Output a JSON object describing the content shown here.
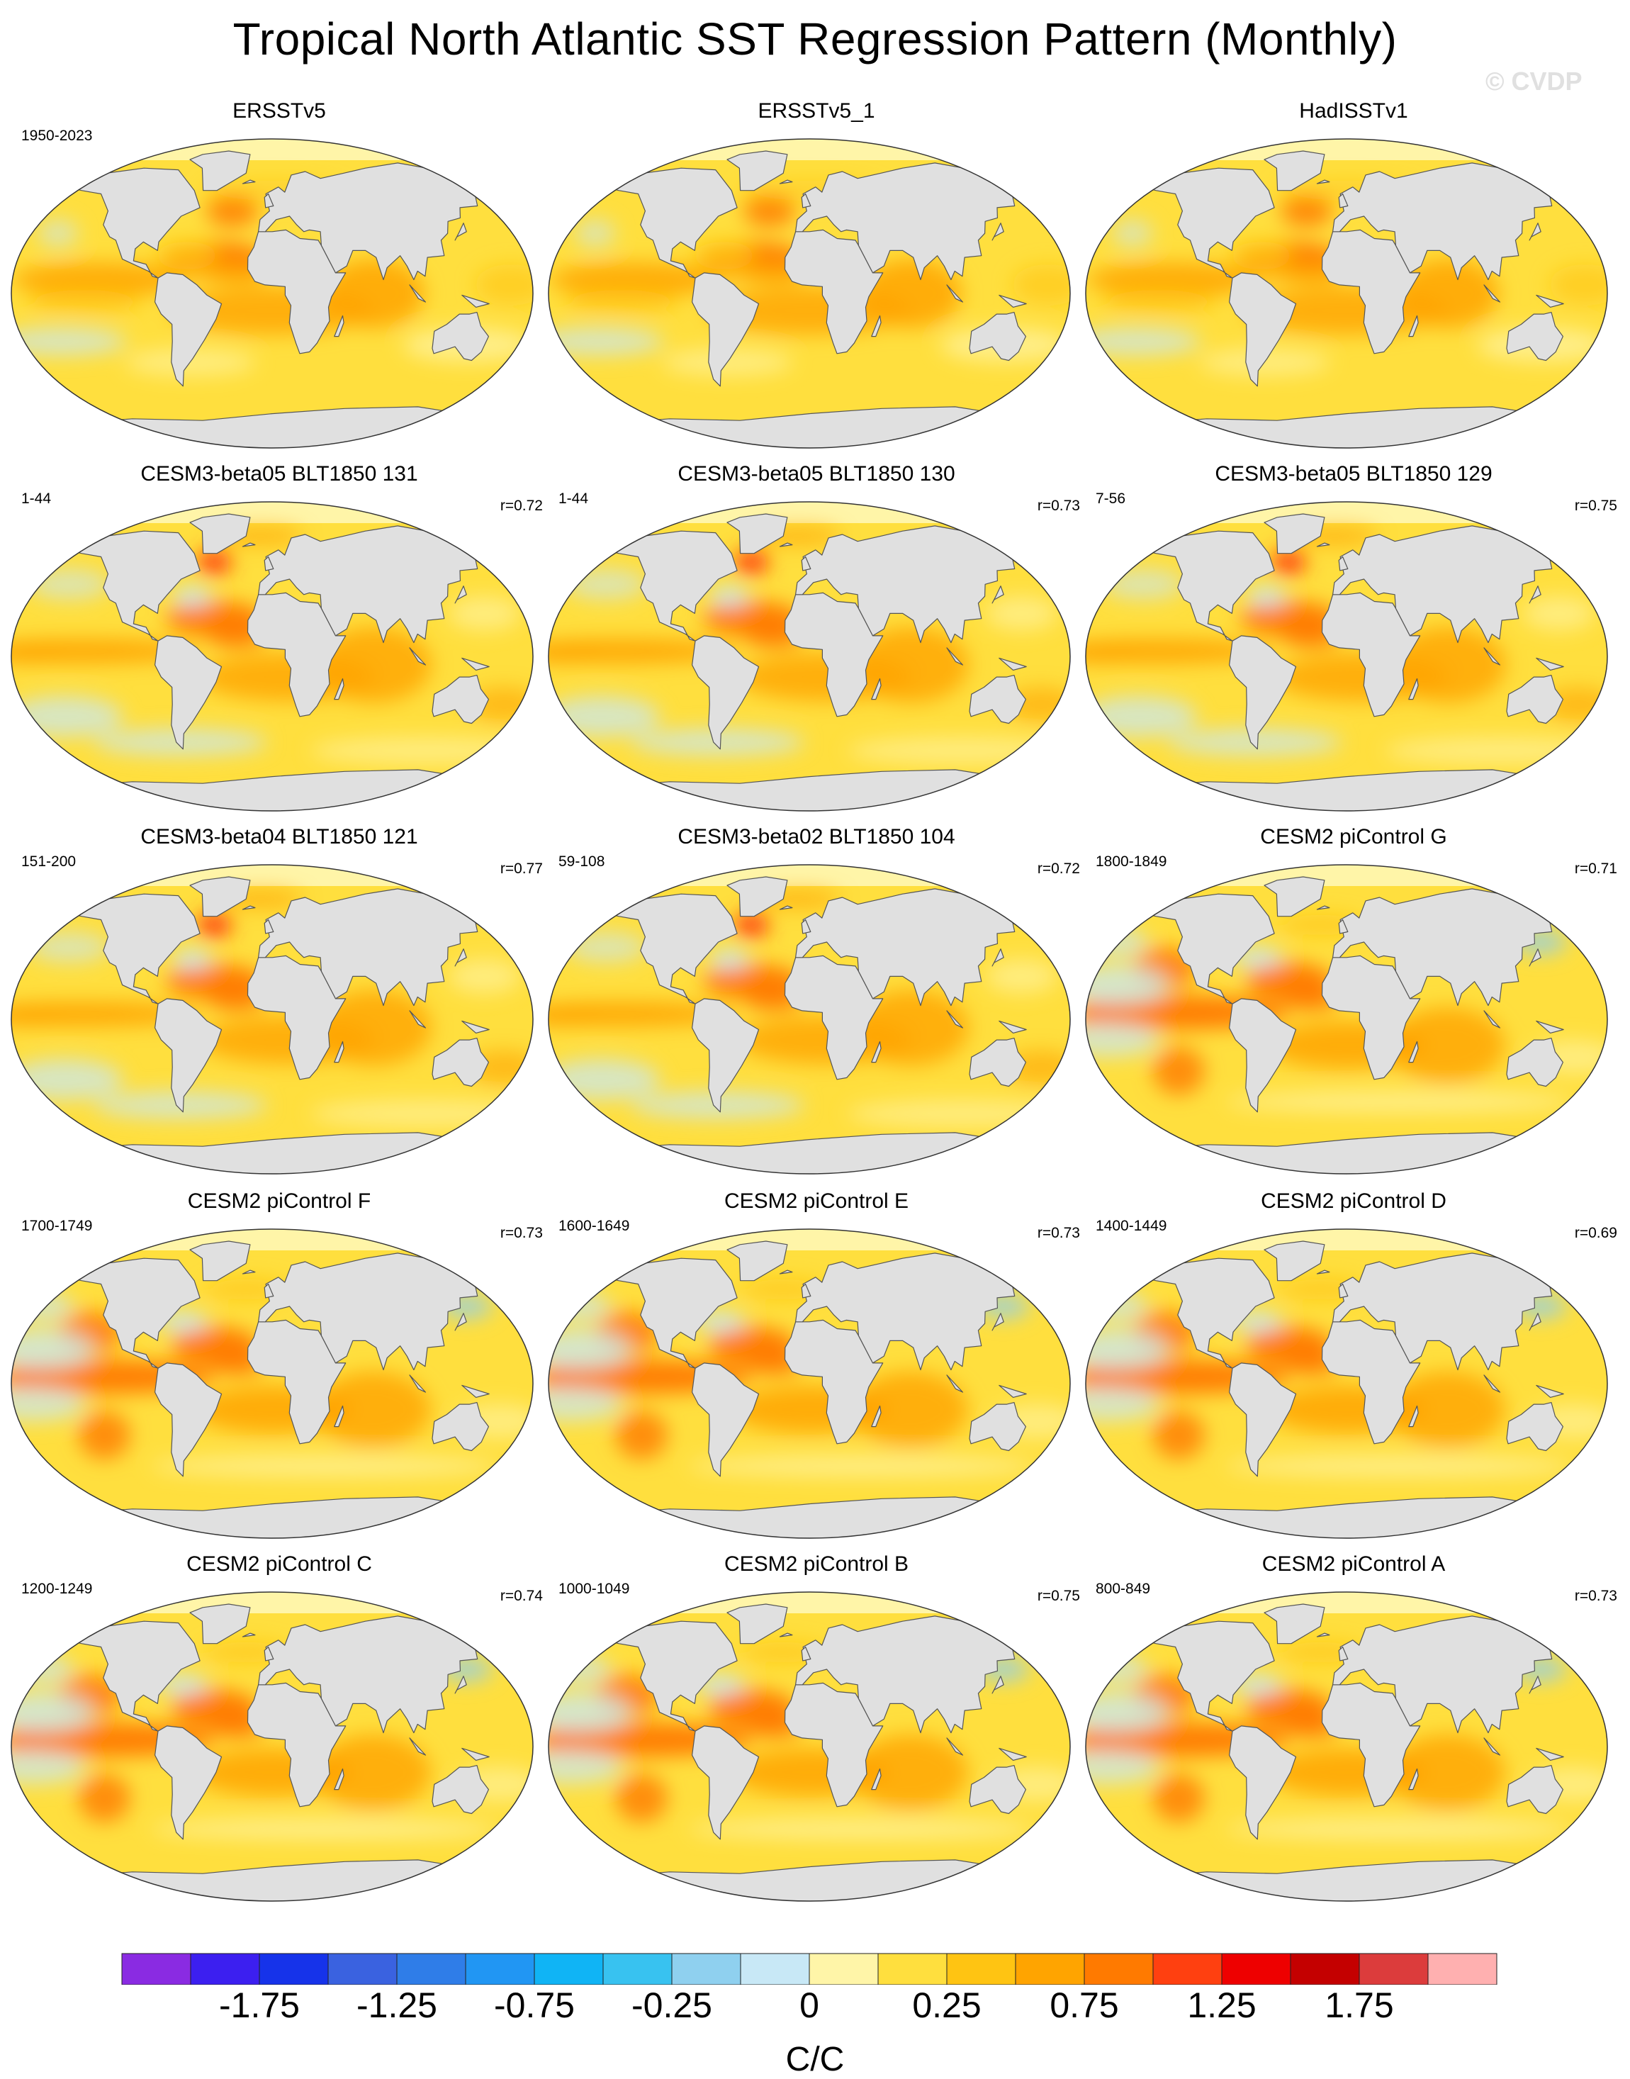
{
  "title": "Tropical North Atlantic SST Regression Pattern (Monthly)",
  "watermark": "© CVDP",
  "colorbar": {
    "unit": "C/C",
    "colors": [
      "#8a2be2",
      "#3c1ff0",
      "#1633ea",
      "#3a62e0",
      "#2f7de8",
      "#2196f3",
      "#10b4f5",
      "#38c2f0",
      "#8fd0ef",
      "#c8e8f6",
      "#fff5a8",
      "#ffdf3e",
      "#ffc412",
      "#ffa400",
      "#ff7a00",
      "#ff4010",
      "#ee0000",
      "#c40000",
      "#dc3c3c",
      "#ffb0b0"
    ],
    "tick_labels": [
      "-1.75",
      "-1.25",
      "-0.75",
      "-0.25",
      "0",
      "0.25",
      "0.75",
      "1.25",
      "1.75"
    ]
  },
  "panels": [
    {
      "title": "ERSSTv5",
      "period": "1950-2023",
      "corr": "",
      "style": "obs"
    },
    {
      "title": "ERSSTv5_1",
      "period": "",
      "corr": "",
      "style": "obs"
    },
    {
      "title": "HadISSTv1",
      "period": "",
      "corr": "",
      "style": "obs"
    },
    {
      "title": "CESM3-beta05 BLT1850 131",
      "period": "1-44",
      "corr": "r=0.72",
      "style": "beta"
    },
    {
      "title": "CESM3-beta05 BLT1850 130",
      "period": "1-44",
      "corr": "r=0.73",
      "style": "beta"
    },
    {
      "title": "CESM3-beta05 BLT1850 129",
      "period": "7-56",
      "corr": "r=0.75",
      "style": "beta"
    },
    {
      "title": "CESM3-beta04 BLT1850 121",
      "period": "151-200",
      "corr": "r=0.77",
      "style": "beta"
    },
    {
      "title": "CESM3-beta02 BLT1850 104",
      "period": "59-108",
      "corr": "r=0.72",
      "style": "beta"
    },
    {
      "title": "CESM2 piControl G",
      "period": "1800-1849",
      "corr": "r=0.71",
      "style": "cesm2"
    },
    {
      "title": "CESM2 piControl F",
      "period": "1700-1749",
      "corr": "r=0.73",
      "style": "cesm2"
    },
    {
      "title": "CESM2 piControl E",
      "period": "1600-1649",
      "corr": "r=0.73",
      "style": "cesm2"
    },
    {
      "title": "CESM2 piControl D",
      "period": "1400-1449",
      "corr": "r=0.69",
      "style": "cesm2"
    },
    {
      "title": "CESM2 piControl C",
      "period": "1200-1249",
      "corr": "r=0.74",
      "style": "cesm2"
    },
    {
      "title": "CESM2 piControl B",
      "period": "1000-1049",
      "corr": "r=0.75",
      "style": "cesm2"
    },
    {
      "title": "CESM2 piControl A",
      "period": "800-849",
      "corr": "r=0.73",
      "style": "cesm2"
    }
  ],
  "chart_data": {
    "type": "heatmap",
    "title": "Tropical North Atlantic SST Regression Pattern (Monthly)",
    "colorbar_label": "C/C",
    "colorbar_ticks": [
      -1.75,
      -1.25,
      -0.75,
      -0.25,
      0,
      0.25,
      0.75,
      1.25,
      1.75
    ],
    "projection": "Robinson (global)",
    "layout": "5 rows x 3 columns",
    "panels": [
      {
        "name": "ERSSTv5",
        "period": "1950-2023"
      },
      {
        "name": "ERSSTv5_1"
      },
      {
        "name": "HadISSTv1"
      },
      {
        "name": "CESM3-beta05 BLT1850 131",
        "period": "1-44",
        "r": 0.72
      },
      {
        "name": "CESM3-beta05 BLT1850 130",
        "period": "1-44",
        "r": 0.73
      },
      {
        "name": "CESM3-beta05 BLT1850 129",
        "period": "7-56",
        "r": 0.75
      },
      {
        "name": "CESM3-beta04 BLT1850 121",
        "period": "151-200",
        "r": 0.77
      },
      {
        "name": "CESM3-beta02 BLT1850 104",
        "period": "59-108",
        "r": 0.72
      },
      {
        "name": "CESM2 piControl G",
        "period": "1800-1849",
        "r": 0.71
      },
      {
        "name": "CESM2 piControl F",
        "period": "1700-1749",
        "r": 0.73
      },
      {
        "name": "CESM2 piControl E",
        "period": "1600-1649",
        "r": 0.73
      },
      {
        "name": "CESM2 piControl D",
        "period": "1400-1449",
        "r": 0.69
      },
      {
        "name": "CESM2 piControl C",
        "period": "1200-1249",
        "r": 0.74
      },
      {
        "name": "CESM2 piControl B",
        "period": "1000-1049",
        "r": 0.75
      },
      {
        "name": "CESM2 piControl A",
        "period": "800-849",
        "r": 0.73
      }
    ]
  }
}
